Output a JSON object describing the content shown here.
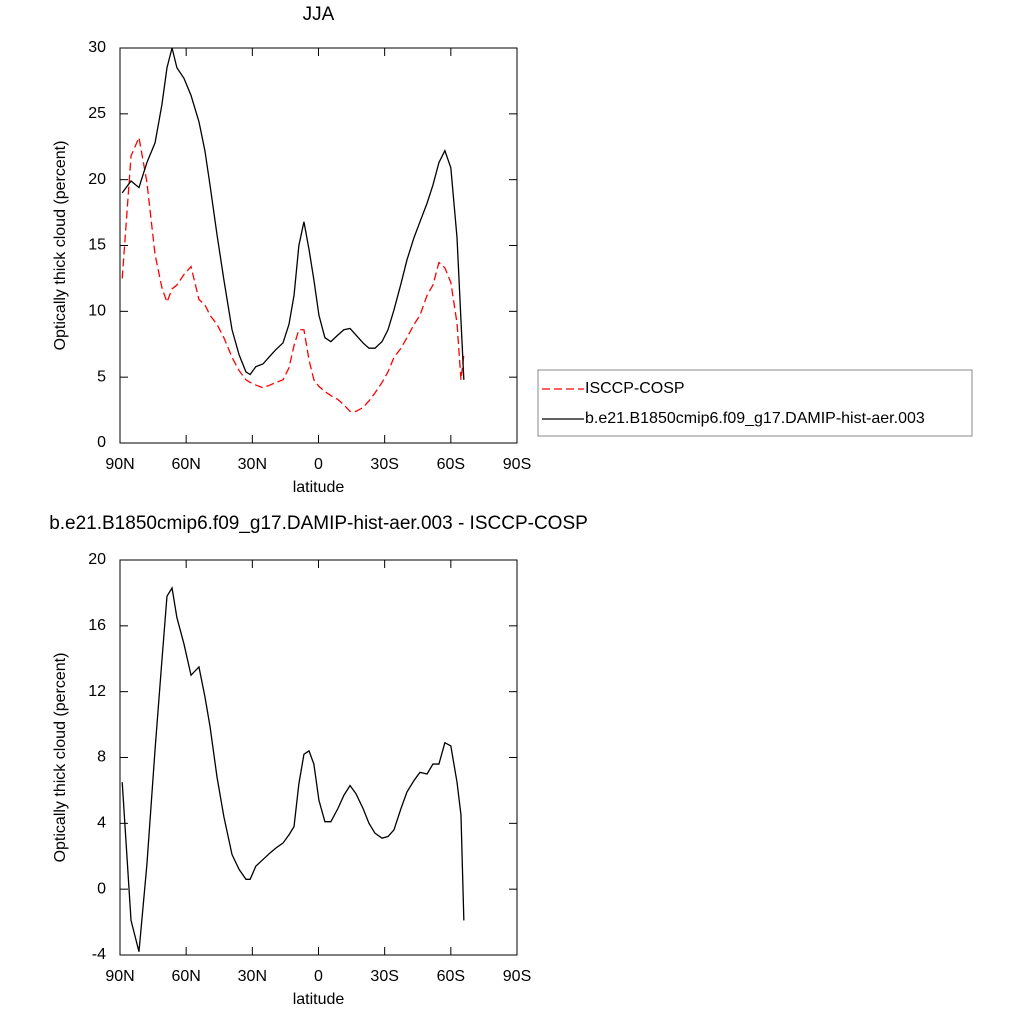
{
  "chart_data": [
    {
      "type": "line",
      "title": "JJA",
      "x_label": "latitude",
      "y_label": "Optically thick cloud (percent)",
      "x": [
        89,
        85,
        81.4,
        77.8,
        74.1,
        71,
        68.7,
        66.4,
        64.2,
        61,
        57.8,
        54.2,
        51.5,
        49.2,
        46,
        42.9,
        39.2,
        36,
        32.9,
        31,
        28.4,
        25.2,
        22,
        19.3,
        16.1,
        13.4,
        11.1,
        8.9,
        6.6,
        4.3,
        2.1,
        -0.2,
        -2.9,
        -5.6,
        -8.8,
        -11.5,
        -14.3,
        -17,
        -20.2,
        -22.9,
        -25.6,
        -28.8,
        -31.5,
        -34.2,
        -37.4,
        -40.1,
        -43.3,
        -46,
        -49.2,
        -51.9,
        -54.6,
        -57.3,
        -60,
        -62.8,
        -64.6,
        -65.9
      ],
      "series": [
        {
          "name": "ISCCP-COSP",
          "color": "#ff0000",
          "dash": true,
          "values": [
            12.5,
            21.8,
            23.2,
            19.8,
            14.3,
            11.8,
            10.7,
            11.7,
            12.0,
            12.8,
            13.4,
            10.9,
            10.5,
            9.7,
            9.0,
            8.0,
            6.5,
            5.5,
            4.8,
            4.6,
            4.4,
            4.2,
            4.4,
            4.6,
            4.8,
            5.7,
            7.4,
            8.6,
            8.6,
            6.3,
            4.8,
            4.3,
            3.9,
            3.6,
            3.3,
            2.9,
            2.4,
            2.4,
            2.7,
            3.2,
            3.8,
            4.6,
            5.4,
            6.5,
            7.2,
            8.0,
            9.0,
            9.7,
            11.2,
            12.0,
            13.7,
            13.3,
            12.2,
            9.1,
            4.8,
            6.7
          ]
        },
        {
          "name": "b.e21.B1850cmip6.f09_g17.DAMIP-hist-aer.003",
          "color": "#000000",
          "dash": false,
          "values": [
            19.0,
            19.9,
            19.4,
            21.3,
            22.8,
            25.7,
            28.5,
            30.0,
            28.5,
            27.7,
            26.4,
            24.4,
            22.2,
            19.6,
            15.8,
            12.4,
            8.6,
            6.7,
            5.4,
            5.2,
            5.8,
            6.0,
            6.6,
            7.1,
            7.6,
            9.0,
            11.2,
            15.0,
            16.8,
            14.7,
            12.4,
            9.7,
            8.0,
            7.7,
            8.2,
            8.6,
            8.7,
            8.2,
            7.6,
            7.2,
            7.2,
            7.7,
            8.6,
            10.1,
            12.1,
            13.9,
            15.6,
            16.8,
            18.2,
            19.6,
            21.3,
            22.2,
            20.9,
            15.6,
            9.3,
            4.8
          ]
        }
      ],
      "xlim": [
        90,
        -90
      ],
      "xticks": [
        {
          "value": 90,
          "label": "90N"
        },
        {
          "value": 60,
          "label": "60N"
        },
        {
          "value": 30,
          "label": "30N"
        },
        0,
        {
          "value": -30,
          "label": "30S"
        },
        {
          "value": -60,
          "label": "60S"
        },
        {
          "value": -90,
          "label": "90S"
        }
      ],
      "ylim": [
        0,
        30
      ],
      "yticks": [
        0,
        5,
        10,
        15,
        20,
        25,
        30
      ],
      "legend": "right"
    },
    {
      "type": "line",
      "title": "b.e21.B1850cmip6.f09_g17.DAMIP-hist-aer.003 - ISCCP-COSP",
      "x_label": "latitude",
      "y_label": "Optically thick cloud (percent)",
      "x": [
        89,
        85,
        81.4,
        77.8,
        74.1,
        71,
        68.7,
        66.4,
        64.2,
        61,
        57.8,
        54.2,
        51.5,
        49.2,
        46,
        42.9,
        39.2,
        36,
        32.9,
        31,
        28.4,
        25.2,
        22,
        19.3,
        16.1,
        13.4,
        11.1,
        8.9,
        6.6,
        4.3,
        2.1,
        -0.2,
        -2.9,
        -5.6,
        -8.8,
        -11.5,
        -14.3,
        -17,
        -20.2,
        -22.9,
        -25.6,
        -28.8,
        -31.5,
        -34.2,
        -37.4,
        -40.1,
        -43.3,
        -46,
        -49.2,
        -51.9,
        -54.6,
        -57.3,
        -60,
        -62.8,
        -64.6,
        -65.9
      ],
      "series": [
        {
          "color": "#000000",
          "dash": false,
          "values": [
            6.5,
            -1.9,
            -3.8,
            1.5,
            8.5,
            13.9,
            17.8,
            18.3,
            16.5,
            14.9,
            13.0,
            13.5,
            11.7,
            9.9,
            6.8,
            4.4,
            2.1,
            1.2,
            0.6,
            0.6,
            1.4,
            1.8,
            2.2,
            2.5,
            2.8,
            3.3,
            3.8,
            6.4,
            8.2,
            8.4,
            7.6,
            5.4,
            4.1,
            4.1,
            4.9,
            5.7,
            6.3,
            5.8,
            4.9,
            4.0,
            3.4,
            3.1,
            3.2,
            3.6,
            4.9,
            5.9,
            6.6,
            7.1,
            7.0,
            7.6,
            7.6,
            8.9,
            8.7,
            6.5,
            4.5,
            -1.9
          ]
        }
      ],
      "xlim": [
        90,
        -90
      ],
      "xticks": [
        {
          "value": 90,
          "label": "90N"
        },
        {
          "value": 60,
          "label": "60N"
        },
        {
          "value": 30,
          "label": "30N"
        },
        0,
        {
          "value": -30,
          "label": "30S"
        },
        {
          "value": -60,
          "label": "60S"
        },
        {
          "value": -90,
          "label": "90S"
        }
      ],
      "ylim": [
        -4,
        20
      ],
      "yticks": [
        -4,
        0,
        4,
        8,
        12,
        16,
        20
      ]
    }
  ]
}
